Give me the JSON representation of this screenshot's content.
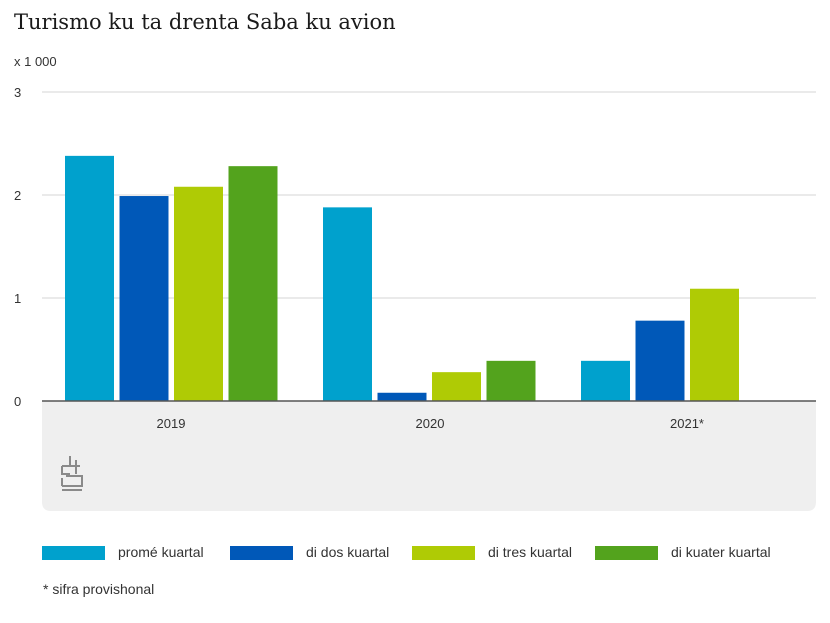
{
  "title": "Turismo ku ta drenta Saba ku avion",
  "unit": "x 1 000",
  "footnote": "* sifra provishonal",
  "chart_data": {
    "type": "bar",
    "title": "Turismo ku ta drenta Saba ku avion",
    "ylabel": "x 1 000",
    "ylim": [
      0,
      3
    ],
    "yticks": [
      "0",
      "1",
      "2",
      "3"
    ],
    "grid": true,
    "legend_position": "bottom",
    "categories": [
      "2019",
      "2020",
      "2021*"
    ],
    "series": [
      {
        "name": "promé kuartal",
        "color": "#00a1cd",
        "values": [
          2.38,
          1.88,
          0.39
        ]
      },
      {
        "name": "di dos kuartal",
        "color": "#0058b8",
        "values": [
          1.99,
          0.08,
          0.78
        ]
      },
      {
        "name": "di tres kuartal",
        "color": "#afcb05",
        "values": [
          2.08,
          0.28,
          1.09
        ]
      },
      {
        "name": "di kuater kuartal",
        "color": "#53a31d",
        "values": [
          2.28,
          0.39,
          null
        ]
      }
    ]
  }
}
